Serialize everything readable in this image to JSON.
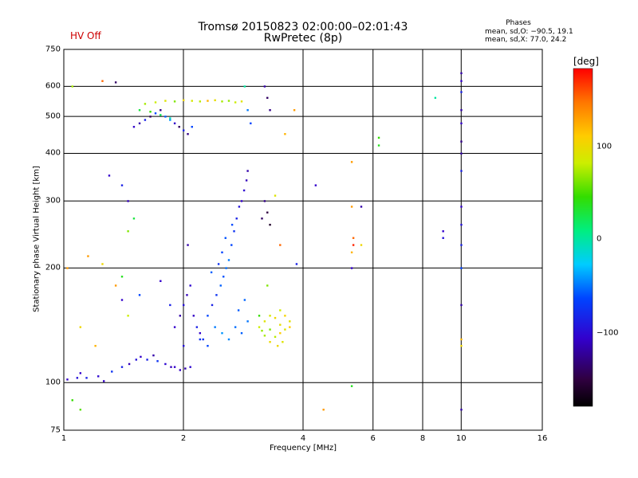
{
  "header": {
    "title_line1": "Tromsø 20150823 02:00:00–02:01:43",
    "title_line2": "RwPretec (8p)",
    "hv_status": "HV Off",
    "hv_color": "#cc0000"
  },
  "phases": {
    "title": "Phases",
    "mean_o": "mean, sd,O: −90.5, 19.1",
    "mean_x": "mean, sd,X:  77.0, 24.2"
  },
  "colorbar": {
    "label": "[deg]",
    "ticks": [
      "100",
      "0",
      "−100"
    ]
  },
  "chart_data": {
    "type": "scatter",
    "title": "Tromsø 20150823 02:00:00–02:01:43",
    "subtitle": "RwPretec (8p)",
    "xlabel": "Frequency [MHz]",
    "ylabel": "Stationary phase Virtual Height [km]",
    "x_scale": "log",
    "y_scale": "log",
    "xlim": [
      1,
      16
    ],
    "ylim": [
      75,
      750
    ],
    "x_ticks": [
      "1",
      "2",
      "4",
      "6",
      "8",
      "10",
      "16"
    ],
    "y_ticks": [
      "750",
      "600",
      "500",
      "400",
      "300",
      "200",
      "100",
      "75"
    ],
    "grid": true,
    "color_scale": {
      "label": "[deg]",
      "range": [
        -180,
        180
      ]
    },
    "series": [
      {
        "points": [
          [
            1.02,
            102,
            -110
          ],
          [
            1.08,
            103,
            -105
          ],
          [
            1.1,
            106,
            -110
          ],
          [
            1.14,
            103,
            -100
          ],
          [
            1.22,
            104,
            -108
          ],
          [
            1.26,
            101,
            -112
          ],
          [
            1.32,
            107,
            -95
          ],
          [
            1.4,
            110,
            -100
          ],
          [
            1.46,
            112,
            -115
          ],
          [
            1.52,
            115,
            -105
          ],
          [
            1.56,
            117,
            -110
          ],
          [
            1.62,
            115,
            -100
          ],
          [
            1.68,
            118,
            -120
          ],
          [
            1.72,
            114,
            -95
          ],
          [
            1.8,
            112,
            -108
          ],
          [
            1.86,
            110,
            -115
          ],
          [
            1.9,
            110,
            -110
          ],
          [
            1.96,
            108,
            -112
          ],
          [
            2.02,
            109,
            -118
          ],
          [
            2.08,
            110,
            -108
          ],
          [
            1.9,
            140,
            -110
          ],
          [
            1.96,
            150,
            -120
          ],
          [
            2.0,
            160,
            -105
          ],
          [
            2.04,
            170,
            -115
          ],
          [
            2.08,
            180,
            -108
          ],
          [
            2.12,
            150,
            -112
          ],
          [
            2.16,
            140,
            -100
          ],
          [
            2.2,
            135,
            -110
          ],
          [
            2.24,
            130,
            -95
          ],
          [
            2.0,
            125,
            -105
          ],
          [
            2.3,
            150,
            -90
          ],
          [
            2.36,
            160,
            -100
          ],
          [
            2.42,
            170,
            -95
          ],
          [
            2.48,
            180,
            -80
          ],
          [
            2.52,
            190,
            -85
          ],
          [
            2.56,
            200,
            -75
          ],
          [
            2.6,
            210,
            -70
          ],
          [
            2.64,
            230,
            -90
          ],
          [
            2.68,
            250,
            -95
          ],
          [
            2.72,
            270,
            -100
          ],
          [
            2.76,
            290,
            -105
          ],
          [
            2.8,
            300,
            -110
          ],
          [
            2.84,
            320,
            -108
          ],
          [
            2.88,
            340,
            -115
          ],
          [
            2.9,
            360,
            -120
          ],
          [
            2.5,
            220,
            -90
          ],
          [
            2.55,
            240,
            -85
          ],
          [
            2.45,
            205,
            -95
          ],
          [
            2.35,
            195,
            -80
          ],
          [
            2.65,
            260,
            -88
          ],
          [
            2.4,
            140,
            -70
          ],
          [
            2.5,
            135,
            -60
          ],
          [
            2.6,
            130,
            -65
          ],
          [
            2.7,
            140,
            -75
          ],
          [
            2.8,
            135,
            -80
          ],
          [
            2.3,
            125,
            -90
          ],
          [
            2.2,
            130,
            -95
          ],
          [
            2.9,
            145,
            -72
          ],
          [
            2.75,
            155,
            -82
          ],
          [
            2.85,
            165,
            -78
          ],
          [
            3.1,
            140,
            80
          ],
          [
            3.2,
            145,
            90
          ],
          [
            3.3,
            150,
            85
          ],
          [
            3.4,
            148,
            100
          ],
          [
            3.5,
            142,
            95
          ],
          [
            3.6,
            138,
            88
          ],
          [
            3.7,
            145,
            92
          ],
          [
            3.5,
            135,
            110
          ],
          [
            3.4,
            132,
            75
          ],
          [
            3.3,
            138,
            60
          ],
          [
            3.2,
            133,
            70
          ],
          [
            3.6,
            150,
            105
          ],
          [
            3.1,
            150,
            40
          ],
          [
            3.5,
            155,
            82
          ],
          [
            3.3,
            128,
            98
          ],
          [
            3.45,
            125,
            100
          ],
          [
            3.55,
            128,
            90
          ],
          [
            3.15,
            137,
            65
          ],
          [
            3.7,
            140,
            110
          ],
          [
            3.25,
            180,
            60
          ],
          [
            1.5,
            470,
            -110
          ],
          [
            1.55,
            480,
            -120
          ],
          [
            1.6,
            490,
            -100
          ],
          [
            1.65,
            500,
            -140
          ],
          [
            1.7,
            510,
            -90
          ],
          [
            1.75,
            520,
            -130
          ],
          [
            1.8,
            500,
            -80
          ],
          [
            1.85,
            490,
            -60
          ],
          [
            1.9,
            480,
            -110
          ],
          [
            1.95,
            470,
            -140
          ],
          [
            2.0,
            460,
            -100
          ],
          [
            2.05,
            450,
            -130
          ],
          [
            2.1,
            470,
            -90
          ],
          [
            1.6,
            540,
            70
          ],
          [
            1.7,
            545,
            80
          ],
          [
            1.8,
            550,
            90
          ],
          [
            1.9,
            548,
            60
          ],
          [
            2.0,
            552,
            100
          ],
          [
            2.1,
            550,
            85
          ],
          [
            2.2,
            548,
            75
          ],
          [
            2.3,
            550,
            120
          ],
          [
            2.4,
            552,
            95
          ],
          [
            2.5,
            548,
            70
          ],
          [
            2.6,
            550,
            65
          ],
          [
            2.7,
            545,
            80
          ],
          [
            2.8,
            548,
            90
          ],
          [
            1.55,
            520,
            20
          ],
          [
            1.65,
            515,
            40
          ],
          [
            1.75,
            505,
            10
          ],
          [
            1.85,
            495,
            -20
          ],
          [
            3.2,
            600,
            -120
          ],
          [
            3.25,
            560,
            -140
          ],
          [
            3.3,
            520,
            -130
          ],
          [
            3.2,
            300,
            -130
          ],
          [
            3.25,
            280,
            -150
          ],
          [
            3.3,
            260,
            -160
          ],
          [
            3.15,
            270,
            -140
          ],
          [
            2.85,
            600,
            -10
          ],
          [
            2.9,
            520,
            -70
          ],
          [
            2.95,
            480,
            -90
          ],
          [
            10,
            650,
            -120
          ],
          [
            10,
            620,
            -110
          ],
          [
            10,
            580,
            -100
          ],
          [
            10,
            520,
            -120
          ],
          [
            10,
            480,
            -110
          ],
          [
            10,
            430,
            -130
          ],
          [
            10,
            400,
            -120
          ],
          [
            10,
            360,
            -100
          ],
          [
            10,
            290,
            -110
          ],
          [
            10,
            260,
            -105
          ],
          [
            10,
            230,
            -100
          ],
          [
            10,
            200,
            -90
          ],
          [
            10,
            160,
            -120
          ],
          [
            10,
            130,
            120
          ],
          [
            10,
            125,
            100
          ],
          [
            10,
            85,
            -120
          ],
          [
            9.0,
            250,
            -110
          ],
          [
            9.0,
            240,
            -105
          ],
          [
            8.6,
            560,
            -10
          ],
          [
            6.2,
            440,
            40
          ],
          [
            6.2,
            420,
            30
          ],
          [
            5.3,
            380,
            130
          ],
          [
            5.3,
            290,
            130
          ],
          [
            5.35,
            240,
            150
          ],
          [
            5.35,
            230,
            170
          ],
          [
            5.3,
            220,
            120
          ],
          [
            5.3,
            200,
            -110
          ],
          [
            5.3,
            98,
            30
          ],
          [
            5.6,
            230,
            100
          ],
          [
            5.6,
            290,
            -120
          ],
          [
            4.3,
            330,
            -110
          ],
          [
            4.5,
            85,
            130
          ],
          [
            3.8,
            520,
            130
          ],
          [
            3.85,
            205,
            -100
          ],
          [
            3.6,
            450,
            120
          ],
          [
            3.5,
            230,
            150
          ],
          [
            3.4,
            310,
            90
          ],
          [
            1.05,
            600,
            70
          ],
          [
            1.25,
            620,
            150
          ],
          [
            1.35,
            615,
            -140
          ],
          [
            1.3,
            350,
            -110
          ],
          [
            1.4,
            330,
            -100
          ],
          [
            1.45,
            300,
            -115
          ],
          [
            1.5,
            270,
            20
          ],
          [
            1.45,
            250,
            60
          ],
          [
            1.35,
            180,
            130
          ],
          [
            1.4,
            165,
            -110
          ],
          [
            1.45,
            150,
            80
          ],
          [
            1.1,
            140,
            100
          ],
          [
            1.2,
            125,
            120
          ],
          [
            1.05,
            90,
            40
          ],
          [
            1.1,
            85,
            50
          ],
          [
            1.15,
            215,
            130
          ],
          [
            1.25,
            205,
            100
          ],
          [
            1.4,
            190,
            30
          ],
          [
            1.55,
            170,
            -90
          ],
          [
            1.02,
            200,
            130
          ],
          [
            1.85,
            160,
            -100
          ],
          [
            1.75,
            185,
            -110
          ],
          [
            2.05,
            230,
            -120
          ]
        ]
      }
    ]
  }
}
